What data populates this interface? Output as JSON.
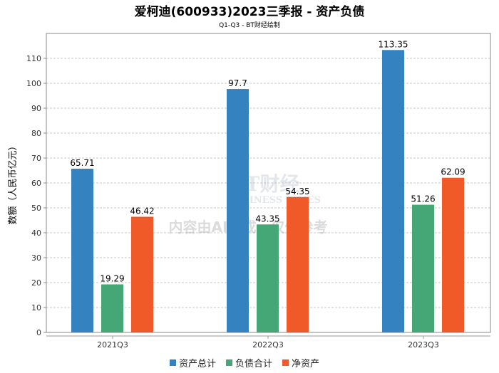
{
  "chart_data": {
    "type": "bar",
    "title": "爱柯迪(600933)2023三季报 - 资产负债",
    "subtitle": "Q1-Q3 - BT财经绘制",
    "xlabel": "",
    "ylabel": "数额（人民币亿元）",
    "ylim": [
      0,
      120
    ],
    "yticks": [
      0,
      10,
      20,
      30,
      40,
      50,
      60,
      70,
      80,
      90,
      100,
      110
    ],
    "grid": true,
    "legend_position": "bottom",
    "categories": [
      "2021Q3",
      "2022Q3",
      "2023Q3"
    ],
    "series": [
      {
        "name": "资产总计",
        "color": "#3582c0",
        "values": [
          65.71,
          97.7,
          113.35
        ]
      },
      {
        "name": "负债合计",
        "color": "#45a776",
        "values": [
          19.29,
          43.35,
          51.26
        ]
      },
      {
        "name": "净资产",
        "color": "#f05a28",
        "values": [
          46.42,
          54.35,
          62.09
        ]
      }
    ],
    "watermark": {
      "brand": "BT财经",
      "brand_en": "BUSINESS TIMES",
      "notice": "内容由AI生成，仅供参考"
    }
  }
}
